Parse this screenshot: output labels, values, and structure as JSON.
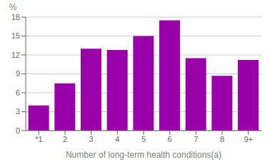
{
  "chart_data": {
    "type": "bar",
    "categories": [
      "*1",
      "2",
      "3",
      "4",
      "5",
      "6",
      "7",
      "8",
      "9+"
    ],
    "values": [
      4.0,
      7.5,
      13.0,
      12.8,
      15.0,
      17.5,
      11.5,
      8.7,
      11.2
    ],
    "color": "#9900aa",
    "xlabel": "Number of long-term health conditions(a)",
    "ylabel": "%",
    "ylim": [
      0,
      18
    ],
    "yticks": [
      0,
      3,
      6,
      9,
      12,
      15,
      18
    ],
    "grid": true
  }
}
